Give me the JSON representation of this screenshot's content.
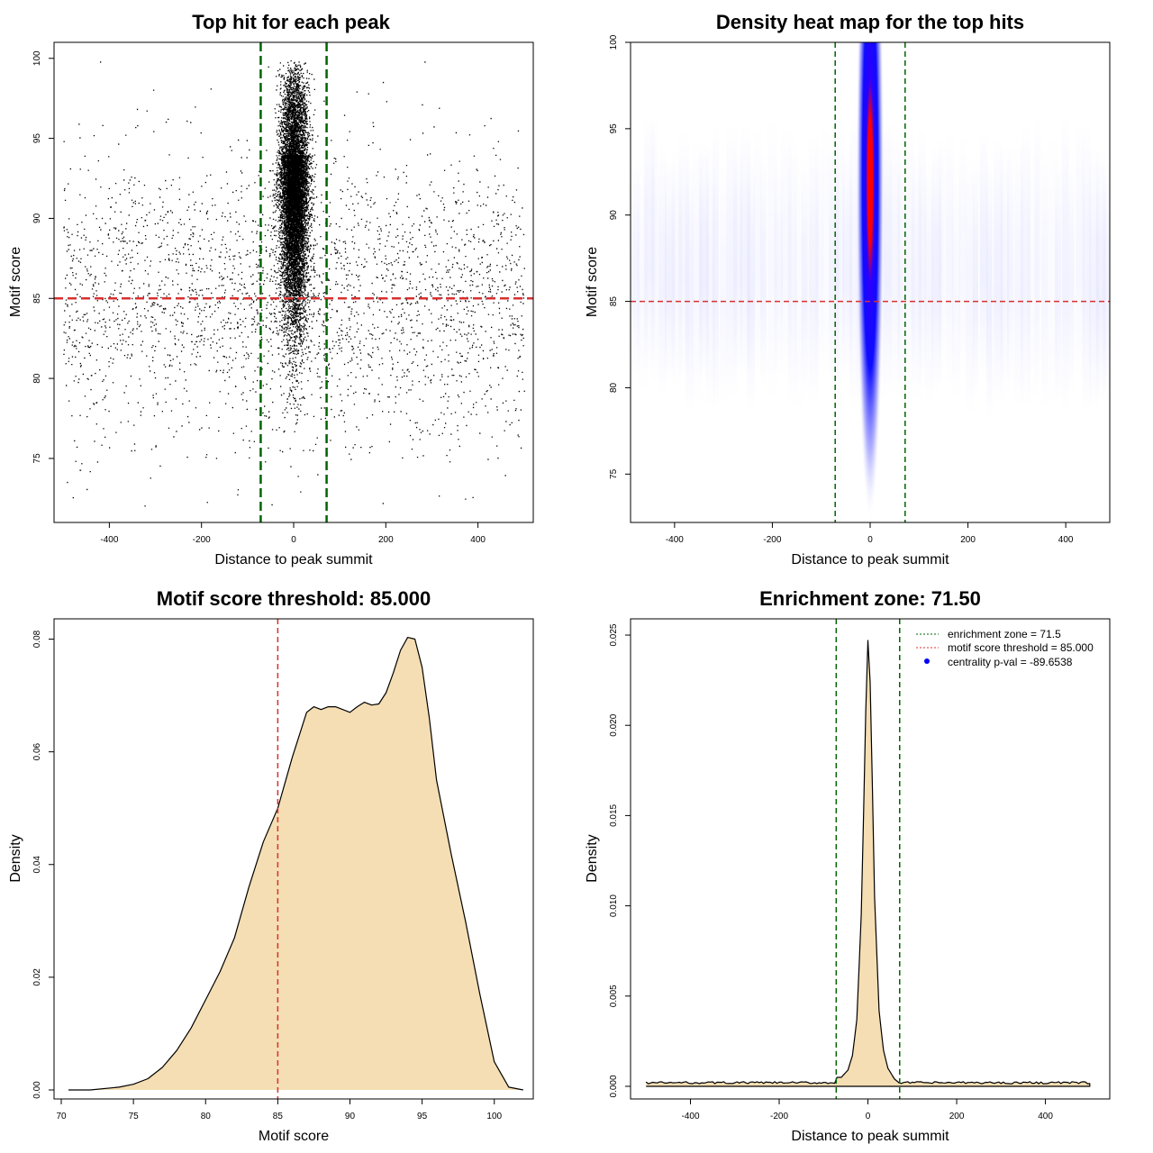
{
  "colors": {
    "green": "#006400",
    "red": "#d93030",
    "fill": "#f5deb3",
    "scatter": "#000000",
    "heat_low": "#ffffff",
    "heat_mid": "#0000ff",
    "heat_high": "#ff0000"
  },
  "chart_data": [
    {
      "type": "scatter",
      "title": "Top hit for each peak",
      "xlabel": "Distance to peak summit",
      "ylabel": "Motif score",
      "xlim": [
        -520,
        520
      ],
      "ylim": [
        71,
        101
      ],
      "xticks": [
        -400,
        -200,
        0,
        200,
        400
      ],
      "yticks": [
        75,
        80,
        85,
        90,
        95,
        100
      ],
      "threshold": 85,
      "enrichment_zone": [
        -71.5,
        71.5
      ],
      "distribution": {
        "background": {
          "x_range": [
            -500,
            500
          ],
          "y_mean": 85,
          "y_sd": 4.5,
          "n": 2800
        },
        "central": {
          "x_mean": 0,
          "x_sd": 15,
          "y_range": [
            77,
            100
          ],
          "y_mode": 94,
          "n": 10000
        }
      }
    },
    {
      "type": "heatmap",
      "title": "Density heat map for the top hits",
      "xlabel": "Distance to peak summit",
      "ylabel": "Motif score",
      "xlim": [
        -490,
        490
      ],
      "ylim": [
        72.2,
        100
      ],
      "xticks": [
        -400,
        -200,
        0,
        200,
        400
      ],
      "yticks": [
        75,
        80,
        85,
        90,
        95,
        100
      ],
      "threshold": 85,
      "enrichment_zone": [
        -71.5,
        71.5
      ],
      "density_peak": {
        "x": 0,
        "y_center": 92,
        "x_sd": 11,
        "y_sd": 5.5
      },
      "color_scale": [
        "white",
        "blue",
        "red"
      ]
    },
    {
      "type": "area",
      "title": "Motif score threshold: 85.000",
      "xlabel": "Motif score",
      "ylabel": "Density",
      "xlim": [
        69.5,
        102.7
      ],
      "ylim": [
        -0.0016,
        0.0836
      ],
      "xticks": [
        70,
        75,
        80,
        85,
        90,
        95,
        100
      ],
      "yticks": [
        0.0,
        0.02,
        0.04,
        0.06,
        0.08
      ],
      "ytick_labels": [
        "0.00",
        "0.02",
        "0.04",
        "0.06",
        "0.08"
      ],
      "threshold": 85,
      "x": [
        70.5,
        72,
        74,
        75,
        76,
        77,
        78,
        79,
        80,
        81,
        82,
        83,
        84,
        85,
        86,
        87,
        87.5,
        88,
        88.5,
        89,
        89.5,
        90,
        90.5,
        91,
        91.5,
        92,
        92.5,
        93,
        93.5,
        94,
        94.5,
        95,
        95.5,
        96,
        97,
        98,
        99,
        100,
        101,
        102
      ],
      "y": [
        0.0,
        0.0,
        0.0005,
        0.001,
        0.002,
        0.004,
        0.007,
        0.011,
        0.016,
        0.021,
        0.027,
        0.036,
        0.044,
        0.05,
        0.059,
        0.067,
        0.068,
        0.0675,
        0.068,
        0.068,
        0.0675,
        0.067,
        0.068,
        0.0688,
        0.0683,
        0.0685,
        0.0705,
        0.074,
        0.078,
        0.0803,
        0.08,
        0.075,
        0.066,
        0.055,
        0.042,
        0.03,
        0.017,
        0.005,
        0.0005,
        0.0
      ]
    },
    {
      "type": "area",
      "title": "Enrichment zone: 71.50",
      "xlabel": "Distance to peak summit",
      "ylabel": "Density",
      "xlim": [
        -535,
        545
      ],
      "ylim": [
        -0.0007,
        0.0259
      ],
      "xticks": [
        -400,
        -200,
        0,
        200,
        400
      ],
      "yticks": [
        0.0,
        0.005,
        0.01,
        0.015,
        0.02,
        0.025
      ],
      "ytick_labels": [
        "0.000",
        "0.005",
        "0.010",
        "0.015",
        "0.020",
        "0.025"
      ],
      "enrichment_zone": [
        -71.5,
        71.5
      ],
      "x": [
        -500,
        -60,
        -45,
        -35,
        -25,
        -15,
        -8,
        -4,
        0,
        4,
        8,
        15,
        25,
        35,
        45,
        60,
        70,
        500
      ],
      "y": [
        0.0002,
        0.0005,
        0.0009,
        0.0017,
        0.0037,
        0.0095,
        0.017,
        0.022,
        0.0247,
        0.0235,
        0.019,
        0.0105,
        0.0042,
        0.002,
        0.001,
        0.0004,
        0.0002,
        0.0002
      ],
      "legend": [
        {
          "label": "enrichment zone = 71.5",
          "symbol": "dotted-line",
          "color": "#006400"
        },
        {
          "label": "motif score threshold = 85.000",
          "symbol": "dotted-line",
          "color": "#d93030"
        },
        {
          "label": "centrality p-val = -89.6538",
          "symbol": "dot",
          "color": "#0000ff"
        }
      ],
      "legend_position": "top-right"
    }
  ]
}
